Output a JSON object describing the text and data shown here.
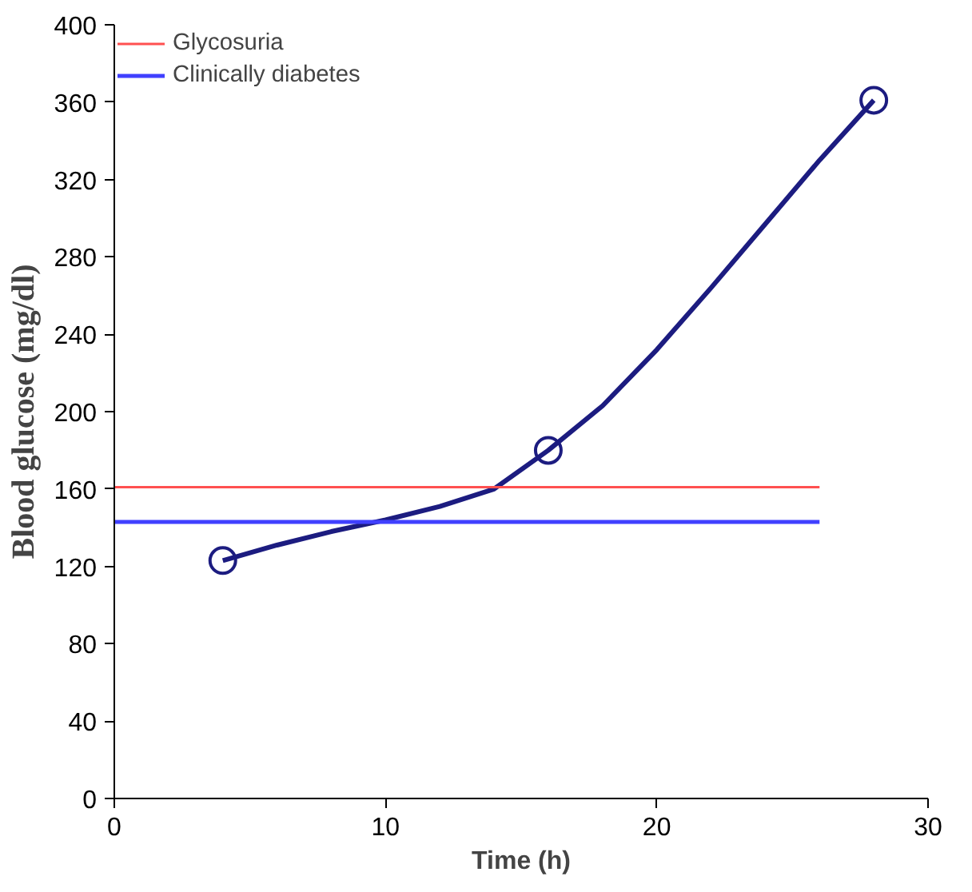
{
  "chart_data": {
    "type": "line",
    "xlabel": "Time (h)",
    "ylabel": "Blood glucose (mg/dl)",
    "xlim": [
      0,
      30
    ],
    "xticks": [
      0,
      10,
      20,
      30
    ],
    "ylim": [
      0,
      400
    ],
    "yticks": [
      0,
      40,
      80,
      120,
      160,
      200,
      240,
      280,
      320,
      360,
      400
    ],
    "grid": false,
    "legend": "top left",
    "marker": "circle",
    "line_style": "solid",
    "series": [
      {
        "x": [
          4,
          6,
          8,
          10,
          12,
          14,
          16,
          18,
          20,
          22,
          24,
          26,
          28
        ],
        "values": [
          123,
          131,
          138,
          144,
          151,
          160,
          180,
          203,
          232,
          264,
          297,
          330,
          361
        ],
        "color": "#1c1c80",
        "marker": "none"
      },
      {
        "type": "scatter",
        "x": [
          4,
          16,
          28
        ],
        "values": [
          123,
          180,
          361
        ],
        "color": "#1c1c80"
      },
      {
        "name": "Glycosuria",
        "x": [
          0,
          26
        ],
        "values": [
          161,
          161
        ],
        "color": "#ff5050",
        "marker": "none"
      },
      {
        "name": "Clinically diabetes",
        "x": [
          0,
          26
        ],
        "values": [
          143,
          143
        ],
        "color": "#4040ff",
        "marker": "none"
      }
    ]
  }
}
